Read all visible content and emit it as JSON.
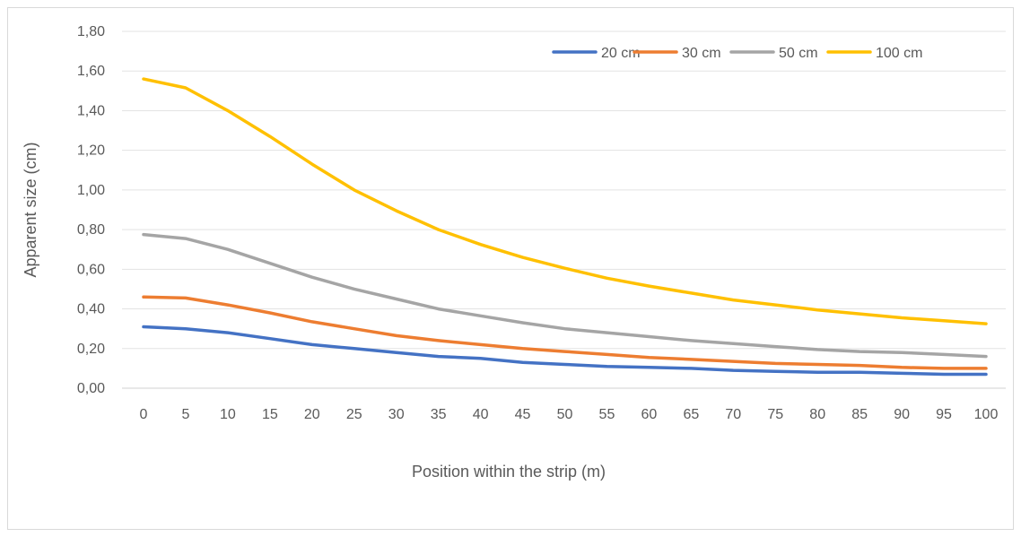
{
  "chart_data": {
    "type": "line",
    "title": "",
    "xlabel": "Position within the strip (m)",
    "ylabel": "Apparent size (cm)",
    "ylim": [
      0,
      1.8
    ],
    "yticks": [
      "0,00",
      "0,20",
      "0,40",
      "0,60",
      "0,80",
      "1,00",
      "1,20",
      "1,40",
      "1,60",
      "1,80"
    ],
    "categories": [
      "0",
      "5",
      "10",
      "15",
      "20",
      "25",
      "30",
      "35",
      "40",
      "45",
      "50",
      "55",
      "60",
      "65",
      "70",
      "75",
      "80",
      "85",
      "90",
      "95",
      "100"
    ],
    "grid": "horizontal",
    "legend_position": "top-right",
    "series": [
      {
        "name": "20 cm",
        "color": "#4472c4",
        "values": [
          0.31,
          0.3,
          0.28,
          0.25,
          0.22,
          0.2,
          0.18,
          0.16,
          0.15,
          0.13,
          0.12,
          0.11,
          0.105,
          0.1,
          0.09,
          0.085,
          0.08,
          0.08,
          0.075,
          0.07,
          0.07
        ]
      },
      {
        "name": "30 cm",
        "color": "#ed7d31",
        "values": [
          0.46,
          0.455,
          0.42,
          0.38,
          0.335,
          0.3,
          0.265,
          0.24,
          0.22,
          0.2,
          0.185,
          0.17,
          0.155,
          0.145,
          0.135,
          0.125,
          0.12,
          0.115,
          0.105,
          0.1,
          0.1
        ]
      },
      {
        "name": "50 cm",
        "color": "#a5a5a5",
        "values": [
          0.775,
          0.755,
          0.7,
          0.63,
          0.56,
          0.5,
          0.45,
          0.4,
          0.365,
          0.33,
          0.3,
          0.28,
          0.26,
          0.24,
          0.225,
          0.21,
          0.195,
          0.185,
          0.18,
          0.17,
          0.16
        ]
      },
      {
        "name": "100 cm",
        "color": "#ffc000",
        "values": [
          1.56,
          1.515,
          1.4,
          1.27,
          1.13,
          1.0,
          0.895,
          0.8,
          0.725,
          0.66,
          0.605,
          0.555,
          0.515,
          0.48,
          0.445,
          0.42,
          0.395,
          0.375,
          0.355,
          0.34,
          0.325
        ]
      }
    ]
  }
}
